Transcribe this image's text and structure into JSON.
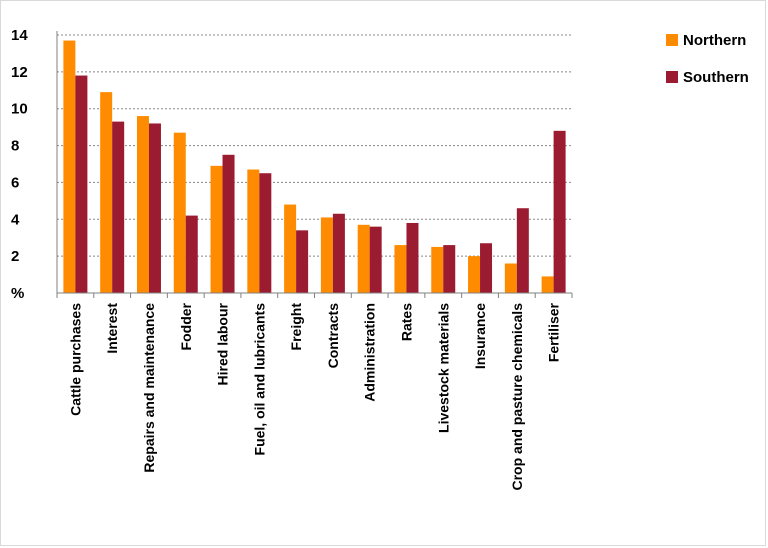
{
  "chart_data": {
    "type": "bar",
    "ylabel": "%",
    "ylim": [
      0,
      14
    ],
    "yticks": [
      "%",
      "2",
      "4",
      "6",
      "8",
      "10",
      "12",
      "14"
    ],
    "grid": true,
    "legend_position": "top-right",
    "categories": [
      "Cattle purchases",
      "Interest",
      "Repairs and maintenance",
      "Fodder",
      "Hired labour",
      "Fuel, oil and lubricants",
      "Freight",
      "Contracts",
      "Administration",
      "Rates",
      "Livestock materials",
      "Insurance",
      "Crop and pasture chemicals",
      "Fertiliser"
    ],
    "series": [
      {
        "name": "Northern",
        "color": "#ff8c00",
        "values": [
          13.7,
          10.9,
          9.6,
          8.7,
          6.9,
          6.7,
          4.8,
          4.1,
          3.7,
          2.6,
          2.5,
          2.0,
          1.6,
          0.9
        ]
      },
      {
        "name": "Southern",
        "color": "#9b1b30",
        "values": [
          11.8,
          9.3,
          9.2,
          4.2,
          7.5,
          6.5,
          3.4,
          4.3,
          3.6,
          3.8,
          2.6,
          2.7,
          4.6,
          8.8
        ]
      }
    ]
  }
}
